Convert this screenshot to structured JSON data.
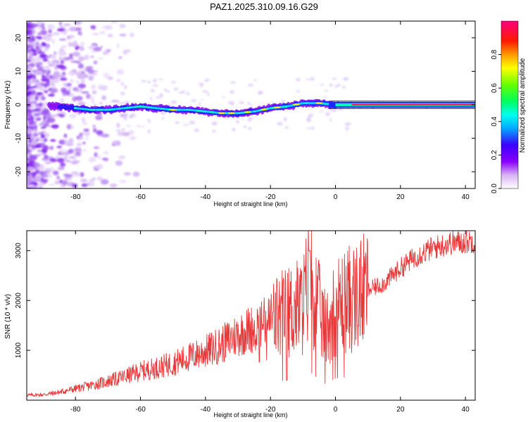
{
  "title": "PAZ1.2025.310.09.16.G29",
  "colors": {
    "snr_line": "#e8383a",
    "frame": "#000000"
  },
  "chart_data": [
    {
      "type": "heatmap",
      "title": "PAZ1.2025.310.09.16.G29",
      "xlabel": "Height of straight line (km)",
      "ylabel": "Frequency (Hz)",
      "xlim": [
        -95,
        43
      ],
      "ylim": [
        -25,
        25
      ],
      "xticks": [
        -80,
        -60,
        -40,
        -20,
        0,
        20,
        40
      ],
      "yticks": [
        -20,
        -10,
        0,
        10,
        20
      ],
      "colorbar": {
        "label": "Normalized spectral amplitude",
        "range": [
          0,
          1
        ],
        "ticks": [
          0.0,
          0.2,
          0.4,
          0.6,
          0.8
        ]
      },
      "ridge": {
        "description": "dominant spectral line frequency (Hz) vs height (km)",
        "x": [
          -95,
          -85,
          -80,
          -75,
          -70,
          -65,
          -60,
          -55,
          -50,
          -45,
          -40,
          -35,
          -30,
          -25,
          -20,
          -15,
          -10,
          -5,
          0,
          10,
          20,
          30,
          43
        ],
        "y": [
          0.0,
          -0.5,
          -1.0,
          -1.5,
          -1.5,
          -1.0,
          -0.5,
          -1.0,
          -1.5,
          -1.5,
          -2.0,
          -2.5,
          -2.5,
          -2.0,
          -1.0,
          -0.5,
          0.5,
          0.5,
          0.0,
          0.0,
          0.0,
          0.0,
          0.0
        ]
      }
    },
    {
      "type": "line",
      "xlabel": "Height of straight line (km)",
      "ylabel": "SNR (10 * v/v)",
      "xlim": [
        -95,
        43
      ],
      "ylim": [
        0,
        3400
      ],
      "xticks": [
        -80,
        -60,
        -40,
        -20,
        0,
        20,
        40
      ],
      "yticks": [
        1000,
        2000,
        3000
      ],
      "series": [
        {
          "name": "SNR",
          "x": [
            -95,
            -90,
            -85,
            -80,
            -75,
            -70,
            -65,
            -60,
            -55,
            -50,
            -45,
            -40,
            -35,
            -30,
            -25,
            -20,
            -15,
            -10,
            -8,
            -5,
            -3,
            0,
            5,
            10,
            15,
            20,
            25,
            30,
            35,
            40,
            43
          ],
          "y": [
            100,
            110,
            160,
            230,
            300,
            380,
            470,
            580,
            650,
            740,
            860,
            980,
            1120,
            1320,
            1450,
            1600,
            1750,
            1900,
            2500,
            1800,
            1400,
            1900,
            2050,
            2200,
            2350,
            2650,
            2900,
            3050,
            3150,
            3180,
            3200
          ]
        }
      ]
    }
  ]
}
